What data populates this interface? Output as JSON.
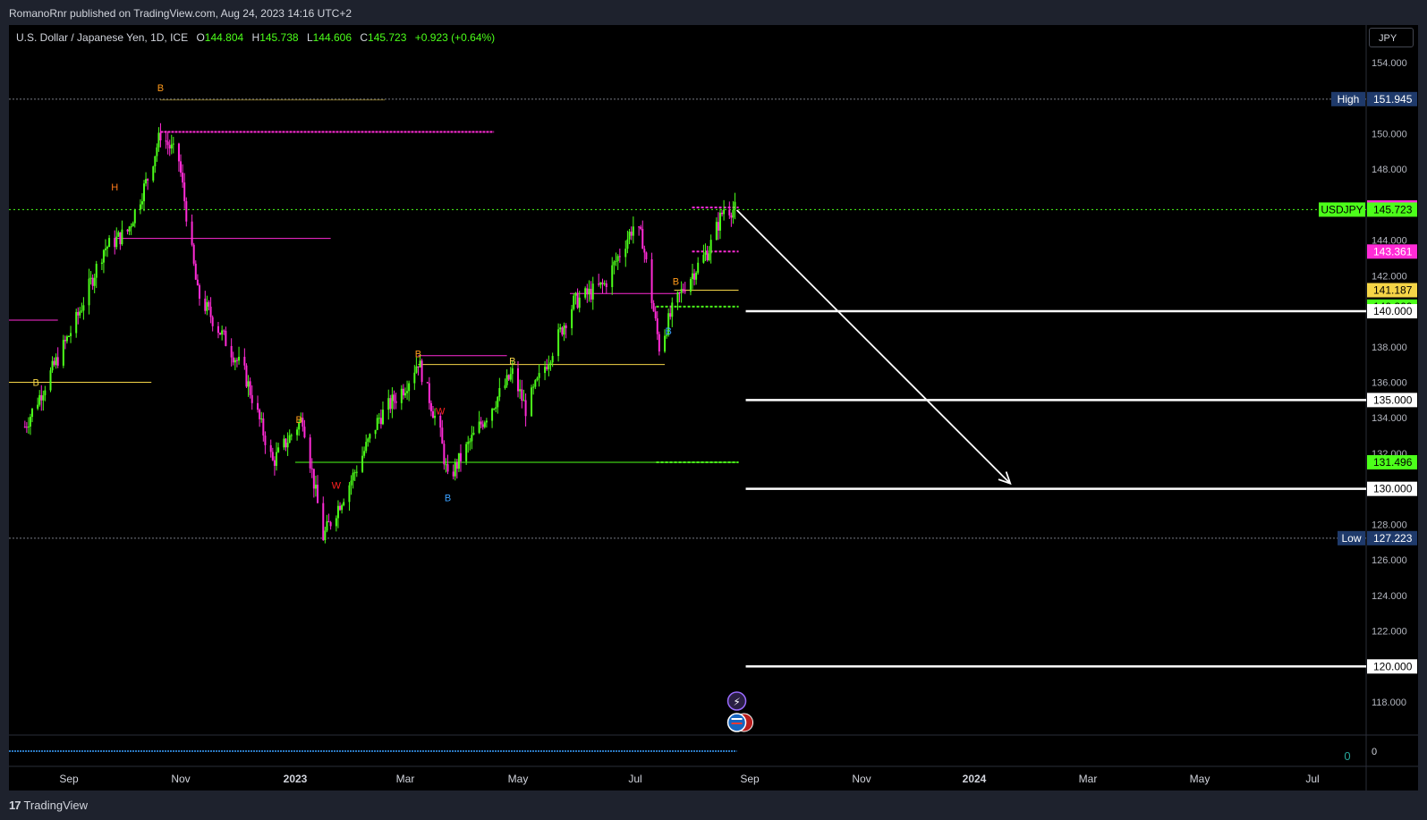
{
  "publisher_line": "RomanoRnr published on TradingView.com, Aug 24, 2023 14:16 UTC+2",
  "legend": {
    "symbol": "U.S. Dollar / Japanese Yen, 1D, ICE",
    "open_label": "O",
    "open": "144.804",
    "high_label": "H",
    "high": "145.738",
    "low_label": "L",
    "low": "144.606",
    "close_label": "C",
    "close": "145.723",
    "change": "+0.923 (+0.64%)"
  },
  "currency_button": "JPY",
  "footer_logo": "TradingView",
  "colors": {
    "up": "#4cff1a",
    "down": "#ff2bd6",
    "magenta_level": "#ff2bd6",
    "yellow_level": "#f5d547",
    "green_level": "#4cff1a",
    "white_level": "#ffffff",
    "high_low_badge": "#1f3a6b",
    "background": "#000000"
  },
  "chart_data": {
    "type": "line",
    "title": "",
    "ylim": [
      116.5,
      155.0
    ],
    "x_ticks": [
      {
        "label": "Sep",
        "bold": false
      },
      {
        "label": "Nov",
        "bold": false
      },
      {
        "label": "2023",
        "bold": true
      },
      {
        "label": "Mar",
        "bold": false
      },
      {
        "label": "May",
        "bold": false
      },
      {
        "label": "Jul",
        "bold": false
      },
      {
        "label": "Sep",
        "bold": false
      },
      {
        "label": "Nov",
        "bold": false
      },
      {
        "label": "2024",
        "bold": true
      },
      {
        "label": "Mar",
        "bold": false
      },
      {
        "label": "May",
        "bold": false
      },
      {
        "label": "Jul",
        "bold": false
      }
    ],
    "y_ticks": [
      "154.000",
      "150.000",
      "148.000",
      "144.000",
      "142.000",
      "138.000",
      "136.000",
      "134.000",
      "132.000",
      "128.000",
      "126.000",
      "124.000",
      "122.000",
      "118.000"
    ],
    "price_series": {
      "name": "USDJPY",
      "x": [
        "2022-08-08",
        "2022-08-22",
        "2022-09-05",
        "2022-09-20",
        "2022-10-03",
        "2022-10-14",
        "2022-10-21",
        "2022-10-31",
        "2022-11-10",
        "2022-11-24",
        "2022-12-05",
        "2022-12-20",
        "2023-01-05",
        "2023-01-16",
        "2023-01-31",
        "2023-02-15",
        "2023-03-01",
        "2023-03-08",
        "2023-03-20",
        "2023-03-24",
        "2023-04-10",
        "2023-04-28",
        "2023-05-05",
        "2023-05-30",
        "2023-06-15",
        "2023-06-30",
        "2023-07-05",
        "2023-07-14",
        "2023-07-21",
        "2023-07-28",
        "2023-08-10",
        "2023-08-18",
        "2023-08-24"
      ],
      "y": [
        133.5,
        136.5,
        139.5,
        143.5,
        144.5,
        147.5,
        150.0,
        148.5,
        141.0,
        138.5,
        136.5,
        131.5,
        134.0,
        127.3,
        130.5,
        134.0,
        135.8,
        137.2,
        133.0,
        130.5,
        133.5,
        136.5,
        134.5,
        140.5,
        141.5,
        144.8,
        144.0,
        138.0,
        140.0,
        141.5,
        143.5,
        145.8,
        145.723
      ]
    },
    "levels": [
      {
        "label": "151.945",
        "tag": "High",
        "y": 151.945,
        "style": "dotted"
      },
      {
        "label": "127.223",
        "tag": "Low",
        "y": 127.223,
        "style": "dotted"
      },
      {
        "label": "145.843",
        "y": 145.843,
        "color": "#ff2bd6"
      },
      {
        "label": "145.723",
        "tag": "USDJPY",
        "y": 145.723,
        "color": "#4cff1a",
        "style": "dotted"
      },
      {
        "label": "143.361",
        "y": 143.361,
        "color": "#ff2bd6"
      },
      {
        "label": "141.187",
        "y": 141.187,
        "color": "#f5d547"
      },
      {
        "label": "140.260",
        "y": 140.26,
        "color": "#4cff1a"
      },
      {
        "label": "140.000",
        "y": 140.0,
        "color": "#ffffff"
      },
      {
        "label": "135.000",
        "y": 135.0,
        "color": "#ffffff"
      },
      {
        "label": "131.496",
        "y": 131.496,
        "color": "#4cff1a"
      },
      {
        "label": "130.000",
        "y": 130.0,
        "color": "#ffffff"
      },
      {
        "label": "120.000",
        "y": 120.0,
        "color": "#ffffff"
      }
    ],
    "projection_arrow": {
      "from": {
        "x": "2023-08-25",
        "y": 145.7
      },
      "to": {
        "x": "2024-01-20",
        "y": 130.3
      }
    },
    "markers": [
      {
        "text": "B",
        "x": "2022-10-21",
        "y": 152.4,
        "color": "#ff9a1a"
      },
      {
        "text": "H",
        "x": "2022-09-26",
        "y": 146.8,
        "color": "#ff7a1a"
      },
      {
        "text": "B",
        "x": "2022-08-14",
        "y": 135.8,
        "color": "#f5d547"
      },
      {
        "text": "B",
        "x": "2023-01-03",
        "y": 133.7,
        "color": "#ff9a1a"
      },
      {
        "text": "W",
        "x": "2023-01-23",
        "y": 130.0,
        "color": "#ff2020"
      },
      {
        "text": "B",
        "x": "2023-03-08",
        "y": 137.4,
        "color": "#ff9a1a"
      },
      {
        "text": "W",
        "x": "2023-03-20",
        "y": 134.2,
        "color": "#ff2020"
      },
      {
        "text": "B",
        "x": "2023-03-24",
        "y": 129.3,
        "color": "#3aa0ff"
      },
      {
        "text": "B",
        "x": "2023-04-28",
        "y": 137.0,
        "color": "#f5d547"
      },
      {
        "text": "B",
        "x": "2023-07-23",
        "y": 141.5,
        "color": "#ff9a1a"
      },
      {
        "text": "B",
        "x": "2023-07-19",
        "y": 138.7,
        "color": "#3aa0ff"
      }
    ],
    "indicator_pane": {
      "zero_label": "0",
      "value_label": "0"
    }
  }
}
